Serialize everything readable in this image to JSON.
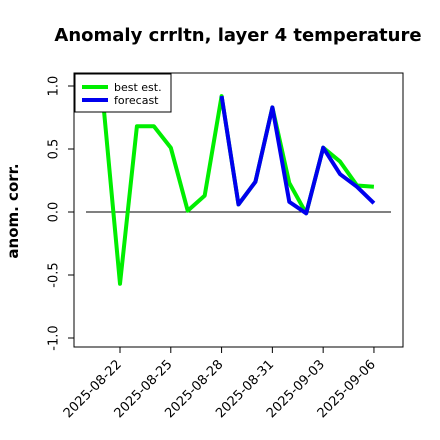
{
  "chart_data": {
    "type": "line",
    "title": "Anomaly crrltn, layer 4 temperature",
    "xlabel": "",
    "ylabel": "anom. corr.",
    "ylim": [
      -1.0,
      1.0
    ],
    "yticks": [
      "-1.0",
      "-0.5",
      "0.0",
      "0.5",
      "1.0"
    ],
    "xticks": [
      "2025-08-22",
      "2025-08-25",
      "2025-08-28",
      "2025-08-31",
      "2025-09-03",
      "2025-09-06"
    ],
    "xtick_colors": [
      "#000000",
      "#000000",
      "#228B22",
      "#000000",
      "#000000",
      "#000000"
    ],
    "reference_line": 0.0,
    "legend_position": "top-left",
    "series": [
      {
        "name": "best est.",
        "color": "#00ee00",
        "x": [
          "2025-08-21",
          "2025-08-22",
          "2025-08-23",
          "2025-08-24",
          "2025-08-25",
          "2025-08-26",
          "2025-08-27",
          "2025-08-28",
          "2025-08-29",
          "2025-08-30",
          "2025-08-31",
          "2025-09-01",
          "2025-09-02",
          "2025-09-03",
          "2025-09-04",
          "2025-09-05",
          "2025-09-06"
        ],
        "values": [
          0.88,
          -0.57,
          0.68,
          0.68,
          0.51,
          0.01,
          0.13,
          0.92,
          0.06,
          0.24,
          0.83,
          0.23,
          -0.01,
          0.51,
          0.4,
          0.21,
          0.2
        ]
      },
      {
        "name": "forecast",
        "color": "#0000ee",
        "x": [
          "2025-08-28",
          "2025-08-29",
          "2025-08-30",
          "2025-08-31",
          "2025-09-01",
          "2025-09-02",
          "2025-09-03",
          "2025-09-04",
          "2025-09-05",
          "2025-09-06"
        ],
        "values": [
          0.92,
          0.06,
          0.24,
          0.83,
          0.08,
          -0.01,
          0.51,
          0.3,
          0.2,
          0.07
        ]
      }
    ]
  }
}
